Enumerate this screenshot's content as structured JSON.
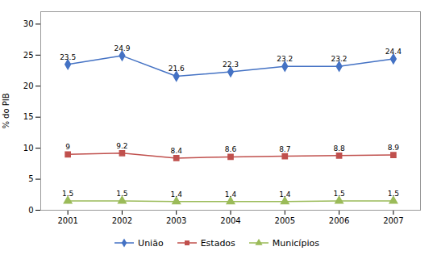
{
  "chart_data": {
    "type": "line",
    "x": [
      2001,
      2002,
      2003,
      2004,
      2005,
      2006,
      2007
    ],
    "xlim": [
      2000.5,
      2007.5
    ],
    "xticks": [
      2001,
      2002,
      2003,
      2004,
      2005,
      2006,
      2007
    ],
    "ylim": [
      0,
      32
    ],
    "yticks": [
      0,
      5,
      10,
      15,
      20,
      25,
      30
    ],
    "ylabel": "% do PIB",
    "series": [
      {
        "name": "União",
        "color": "#4472C4",
        "marker": "diamond",
        "values": [
          23.5,
          24.9,
          21.6,
          22.3,
          23.2,
          23.2,
          24.4
        ]
      },
      {
        "name": "Estados",
        "color": "#C0504D",
        "marker": "square",
        "values": [
          9.0,
          9.2,
          8.4,
          8.6,
          8.7,
          8.8,
          8.9
        ]
      },
      {
        "name": "Municípios",
        "color": "#9BBB59",
        "marker": "triangle",
        "values": [
          1.5,
          1.5,
          1.4,
          1.4,
          1.4,
          1.5,
          1.5
        ]
      }
    ],
    "data_labels": true,
    "legend": "bottom",
    "grid": false
  }
}
